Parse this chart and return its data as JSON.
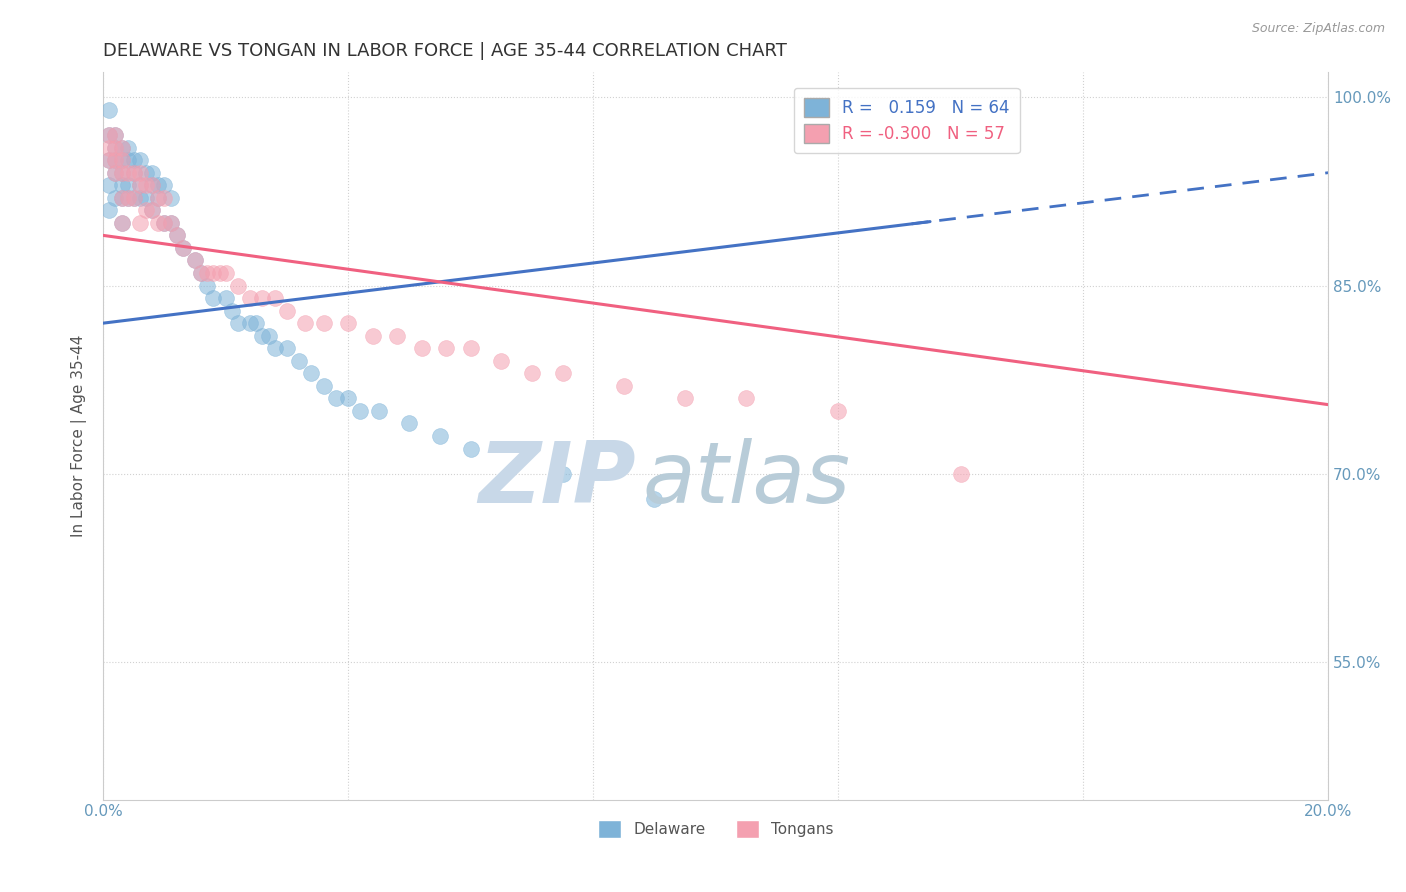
{
  "title": "DELAWARE VS TONGAN IN LABOR FORCE | AGE 35-44 CORRELATION CHART",
  "source": "Source: ZipAtlas.com",
  "ylabel": "In Labor Force | Age 35-44",
  "xlim": [
    0.0,
    0.2
  ],
  "ylim": [
    0.44,
    1.02
  ],
  "xticks": [
    0.0,
    0.04,
    0.08,
    0.12,
    0.16,
    0.2
  ],
  "yticks": [
    0.55,
    0.7,
    0.85,
    1.0
  ],
  "right_yticklabels": [
    "55.0%",
    "70.0%",
    "85.0%",
    "100.0%"
  ],
  "delaware_color": "#7EB3D8",
  "tongan_color": "#F4A0B0",
  "delaware_R": 0.159,
  "delaware_N": 64,
  "tongan_R": -0.3,
  "tongan_N": 57,
  "background_color": "#ffffff",
  "grid_color": "#cccccc",
  "watermark_zip": "ZIP",
  "watermark_atlas": "atlas",
  "watermark_color": "#c8d8e8",
  "blue_line_color": "#4472C4",
  "pink_line_color": "#F06080",
  "title_fontsize": 13,
  "axis_label_fontsize": 11,
  "tick_fontsize": 11,
  "legend_fontsize": 12,
  "delaware_x": [
    0.001,
    0.001,
    0.001,
    0.001,
    0.001,
    0.002,
    0.002,
    0.002,
    0.002,
    0.002,
    0.003,
    0.003,
    0.003,
    0.003,
    0.003,
    0.003,
    0.004,
    0.004,
    0.004,
    0.004,
    0.005,
    0.005,
    0.005,
    0.006,
    0.006,
    0.006,
    0.007,
    0.007,
    0.008,
    0.008,
    0.008,
    0.009,
    0.009,
    0.01,
    0.01,
    0.011,
    0.011,
    0.012,
    0.013,
    0.015,
    0.016,
    0.017,
    0.018,
    0.02,
    0.021,
    0.022,
    0.024,
    0.025,
    0.026,
    0.027,
    0.028,
    0.03,
    0.032,
    0.034,
    0.036,
    0.038,
    0.04,
    0.042,
    0.045,
    0.05,
    0.055,
    0.06,
    0.075,
    0.09
  ],
  "delaware_y": [
    0.99,
    0.97,
    0.95,
    0.93,
    0.91,
    0.97,
    0.96,
    0.95,
    0.94,
    0.92,
    0.96,
    0.95,
    0.94,
    0.93,
    0.92,
    0.9,
    0.96,
    0.95,
    0.93,
    0.92,
    0.95,
    0.94,
    0.92,
    0.95,
    0.93,
    0.92,
    0.94,
    0.92,
    0.94,
    0.93,
    0.91,
    0.93,
    0.92,
    0.93,
    0.9,
    0.92,
    0.9,
    0.89,
    0.88,
    0.87,
    0.86,
    0.85,
    0.84,
    0.84,
    0.83,
    0.82,
    0.82,
    0.82,
    0.81,
    0.81,
    0.8,
    0.8,
    0.79,
    0.78,
    0.77,
    0.76,
    0.76,
    0.75,
    0.75,
    0.74,
    0.73,
    0.72,
    0.7,
    0.68
  ],
  "tongan_x": [
    0.001,
    0.001,
    0.001,
    0.002,
    0.002,
    0.002,
    0.002,
    0.003,
    0.003,
    0.003,
    0.003,
    0.003,
    0.004,
    0.004,
    0.005,
    0.005,
    0.006,
    0.006,
    0.006,
    0.007,
    0.007,
    0.008,
    0.008,
    0.009,
    0.009,
    0.01,
    0.01,
    0.011,
    0.012,
    0.013,
    0.015,
    0.016,
    0.017,
    0.018,
    0.019,
    0.02,
    0.022,
    0.024,
    0.026,
    0.028,
    0.03,
    0.033,
    0.036,
    0.04,
    0.044,
    0.048,
    0.052,
    0.056,
    0.06,
    0.065,
    0.07,
    0.075,
    0.085,
    0.095,
    0.105,
    0.12,
    0.14
  ],
  "tongan_y": [
    0.97,
    0.96,
    0.95,
    0.97,
    0.96,
    0.95,
    0.94,
    0.96,
    0.95,
    0.94,
    0.92,
    0.9,
    0.94,
    0.92,
    0.94,
    0.92,
    0.94,
    0.93,
    0.9,
    0.93,
    0.91,
    0.93,
    0.91,
    0.92,
    0.9,
    0.92,
    0.9,
    0.9,
    0.89,
    0.88,
    0.87,
    0.86,
    0.86,
    0.86,
    0.86,
    0.86,
    0.85,
    0.84,
    0.84,
    0.84,
    0.83,
    0.82,
    0.82,
    0.82,
    0.81,
    0.81,
    0.8,
    0.8,
    0.8,
    0.79,
    0.78,
    0.78,
    0.77,
    0.76,
    0.76,
    0.75,
    0.7
  ]
}
